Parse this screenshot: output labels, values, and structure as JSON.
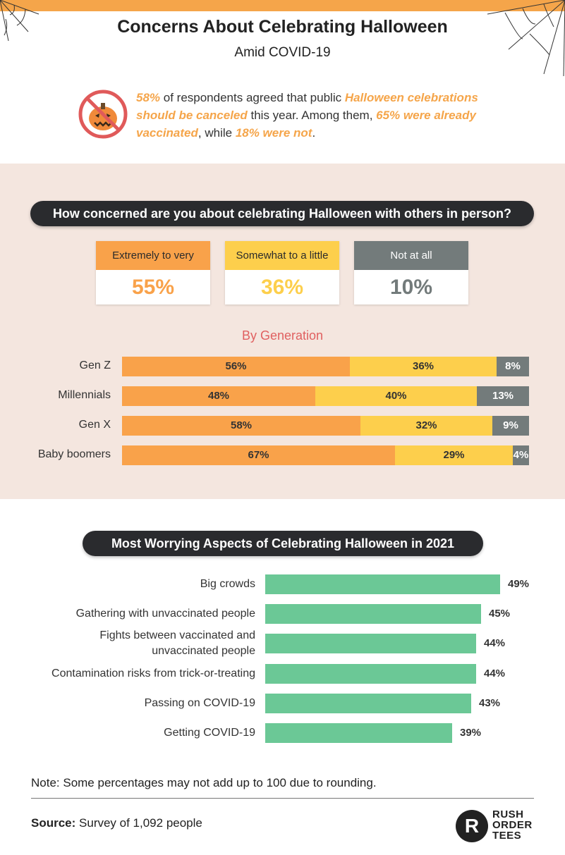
{
  "header": {
    "title": "Concerns About Celebrating Halloween",
    "subtitle": "Amid COVID-19"
  },
  "intro": {
    "p1": "58%",
    "p2": " of respondents agreed that public ",
    "p3": "Halloween celebrations should be canceled",
    "p4": " this year. Among them, ",
    "p5": "65% were already vaccinated",
    "p6": ", while ",
    "p7": "18% were not",
    "p8": "."
  },
  "concern": {
    "question": "How concerned are you about celebrating Halloween with others in person?",
    "cards": [
      {
        "label": "Extremely to very",
        "value": "55%"
      },
      {
        "label": "Somewhat to a little",
        "value": "36%"
      },
      {
        "label": "Not at all",
        "value": "10%"
      }
    ],
    "generation_title": "By Generation"
  },
  "aspects": {
    "title": "Most Worrying Aspects of Celebrating Halloween in 2021"
  },
  "footer": {
    "note": "Note: Some percentages may not add up to 100 due to rounding.",
    "source_label": "Source:",
    "source_text": " Survey of 1,092 people",
    "logo_letter": "R",
    "logo_line1": "RUSH",
    "logo_line2": "ORDER",
    "logo_line3": "TEES"
  },
  "colors": {
    "orange": "#f9a24a",
    "yellow": "#fdcf4c",
    "gray": "#737b7b",
    "green": "#6bc896",
    "dark": "#2a2b2e"
  },
  "chart_data": [
    {
      "type": "bar",
      "orientation": "horizontal-stacked",
      "title": "By Generation",
      "categories": [
        "Gen Z",
        "Millennials",
        "Gen X",
        "Baby boomers"
      ],
      "series": [
        {
          "name": "Extremely to very",
          "values": [
            56,
            48,
            58,
            67
          ]
        },
        {
          "name": "Somewhat to a little",
          "values": [
            36,
            40,
            32,
            29
          ]
        },
        {
          "name": "Not at all",
          "values": [
            8,
            13,
            9,
            4
          ]
        }
      ],
      "unit": "%"
    },
    {
      "type": "bar",
      "orientation": "horizontal",
      "title": "Most Worrying Aspects of Celebrating Halloween in 2021",
      "categories": [
        "Big crowds",
        "Gathering with unvaccinated people",
        "Fights between vaccinated and unvaccinated people",
        "Contamination risks from trick-or-treating",
        "Passing on COVID-19",
        "Getting COVID-19"
      ],
      "values": [
        49,
        45,
        44,
        44,
        43,
        39
      ],
      "unit": "%"
    }
  ]
}
